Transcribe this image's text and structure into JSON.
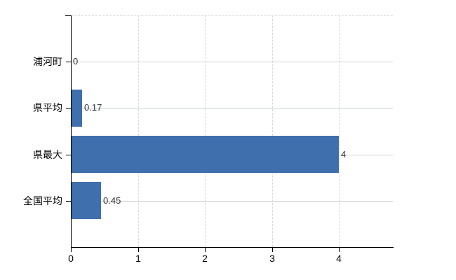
{
  "chart_data": {
    "type": "bar",
    "orientation": "horizontal",
    "title": "",
    "xlabel": "",
    "ylabel": "",
    "categories": [
      "浦河町",
      "県平均",
      "県最大",
      "全国平均"
    ],
    "values": [
      0,
      0.17,
      4,
      0.45
    ],
    "value_labels": [
      "0",
      "0.17",
      "4",
      "0.45"
    ],
    "x_ticks": [
      {
        "value": 0,
        "label": "0"
      },
      {
        "value": 1,
        "label": "1"
      },
      {
        "value": 2,
        "label": "2"
      },
      {
        "value": 3,
        "label": "3"
      },
      {
        "value": 4,
        "label": "4"
      }
    ],
    "xlim": [
      0,
      4.81
    ],
    "legend_position": "none",
    "grid": {
      "vertical_lines": "dashed",
      "horizontal_lines": "solid",
      "top_border": "dashed"
    },
    "colors": {
      "bar": "#3f6fac",
      "axis": "#000000",
      "vertical_grid": "#d8d8d8",
      "horizontal_grid": "#ccd3cc",
      "category_label": "#000000",
      "tick_label": "#000000",
      "value_label": "#333333",
      "background": "#ffffff"
    }
  }
}
